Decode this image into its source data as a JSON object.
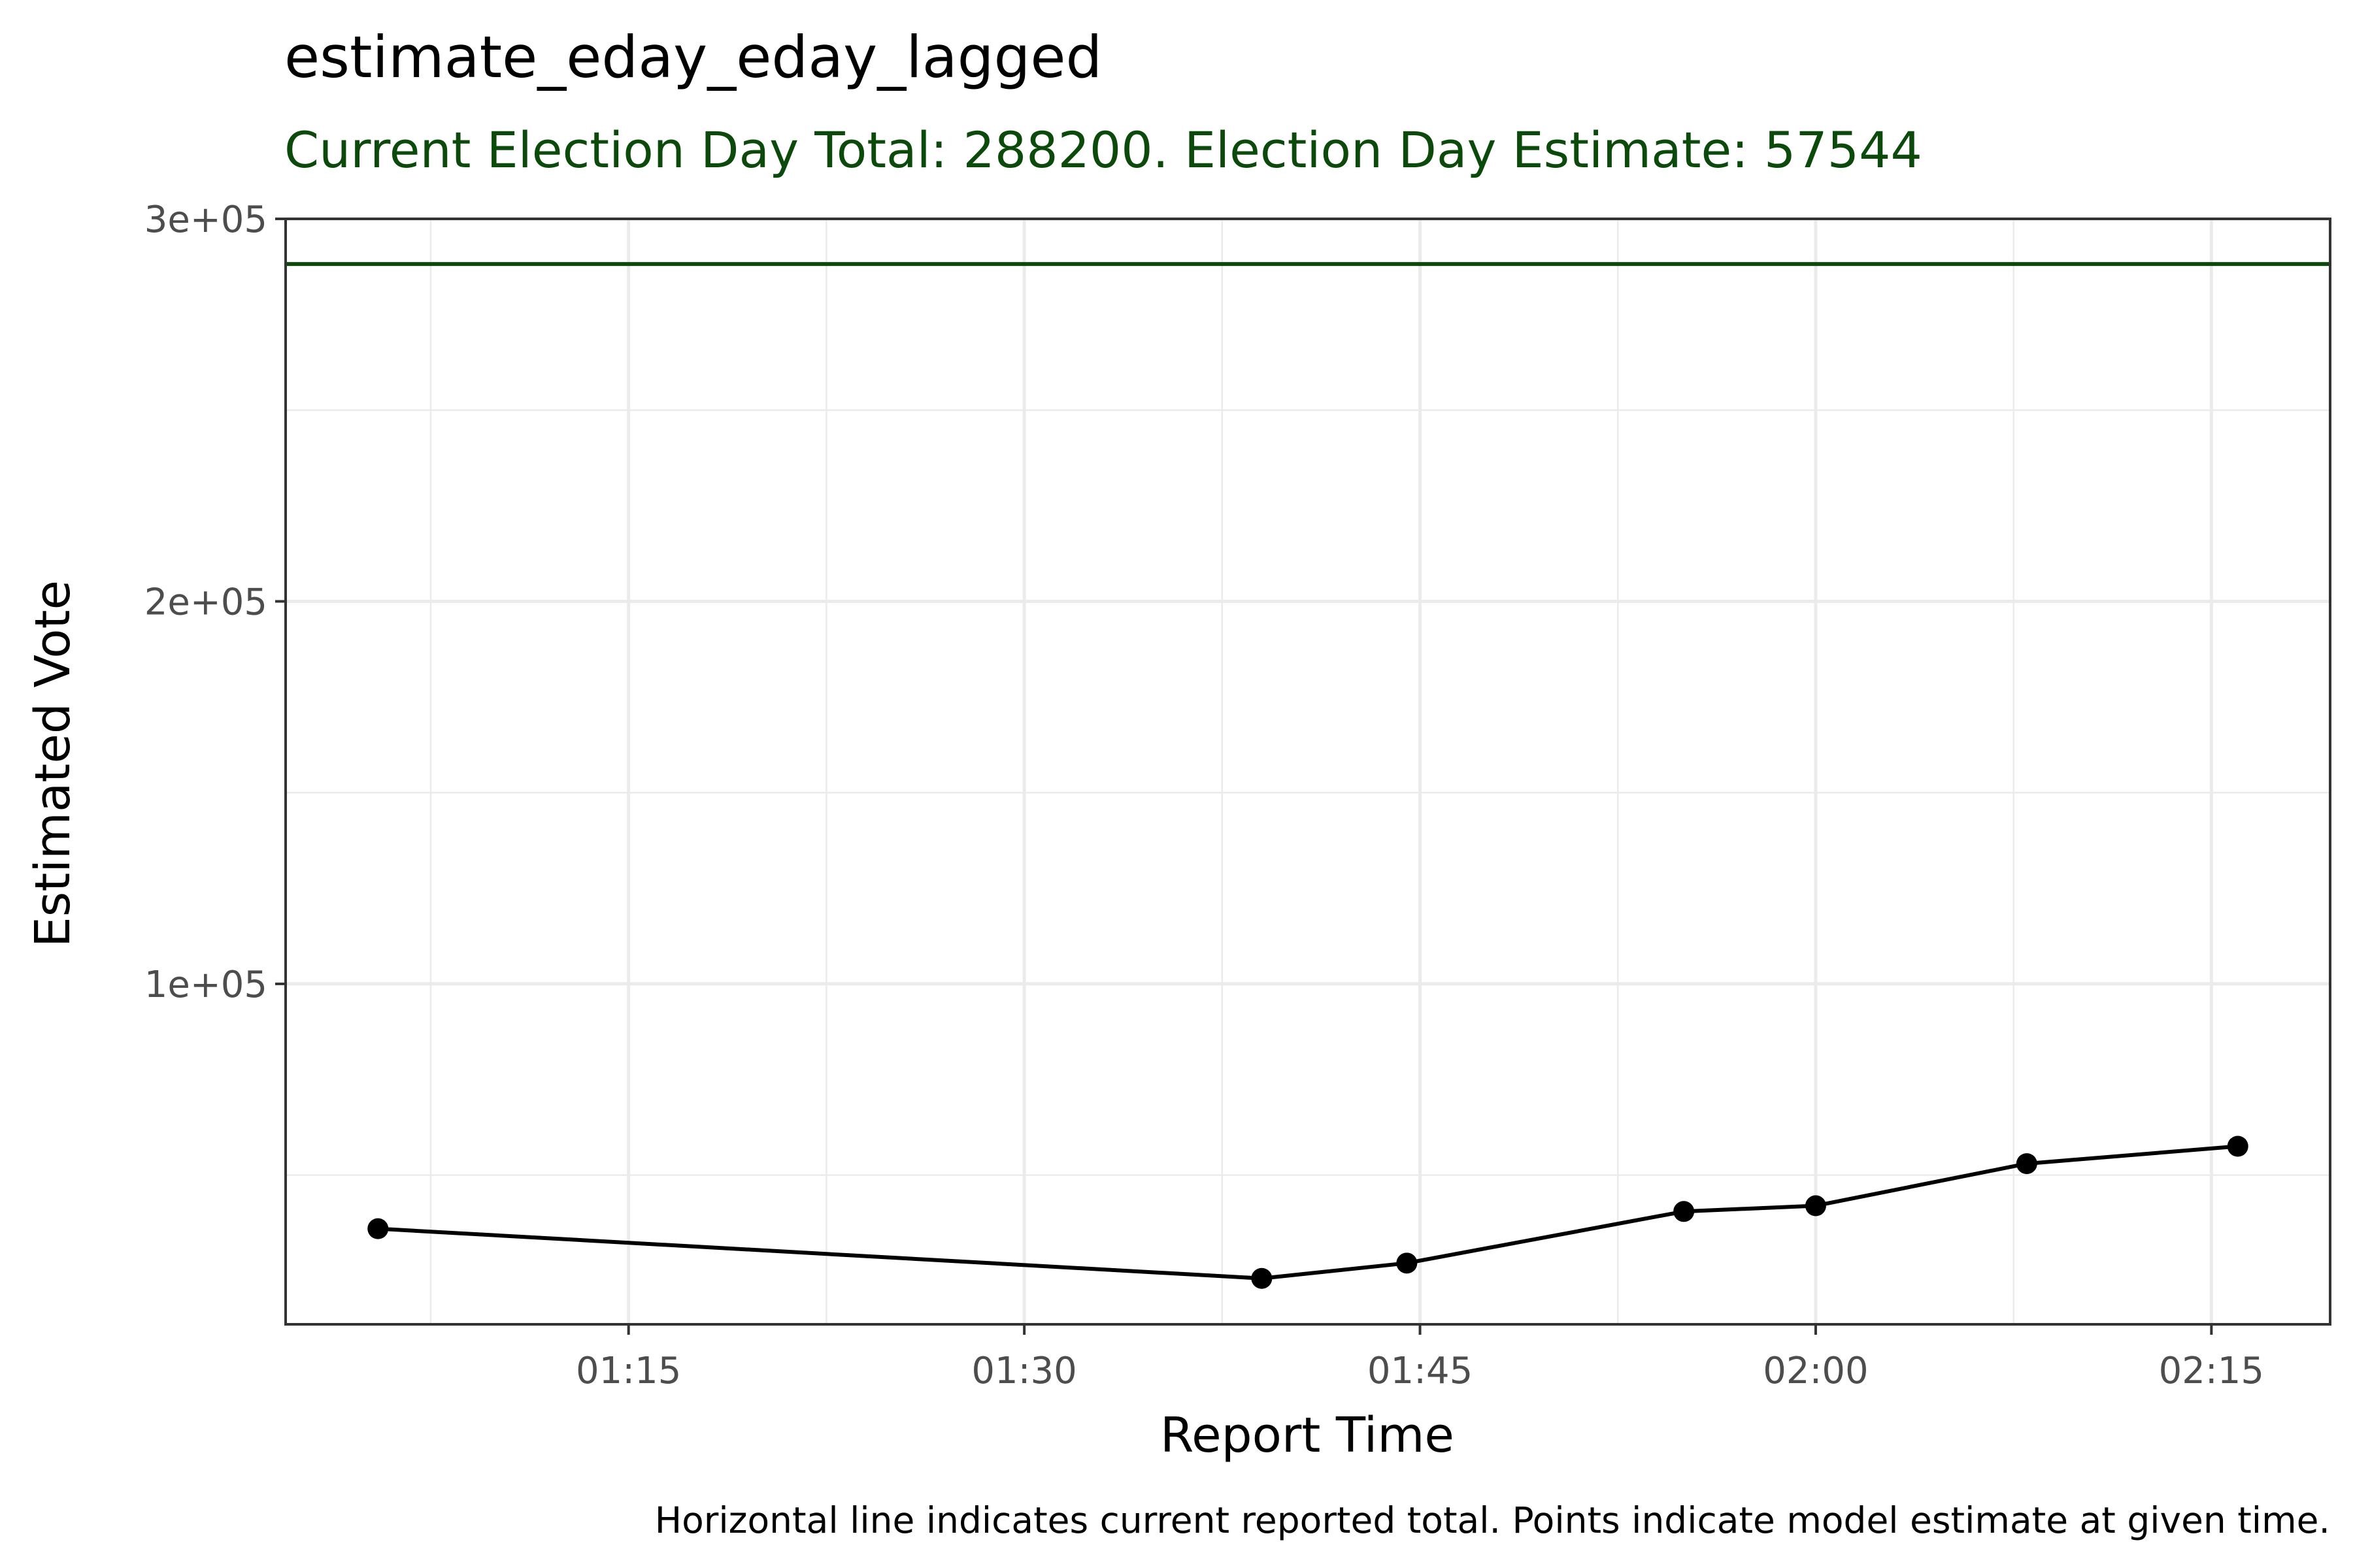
{
  "chart_data": {
    "type": "line",
    "title": "estimate_eday_eday_lagged",
    "subtitle": "Current Election Day Total: 288200. Election Day Estimate: 57544",
    "xlabel": "Report Time",
    "ylabel": "Estimated Vote",
    "caption": "Horizontal line indicates current reported total. Points indicate model estimate at given time.",
    "x_ticks": [
      "01:15",
      "01:30",
      "01:45",
      "02:00",
      "02:15"
    ],
    "x_tick_minutes": [
      75,
      90,
      105,
      120,
      135
    ],
    "xlim_minutes": [
      62.0,
      139.5
    ],
    "y_ticks": [
      100000,
      200000,
      300000
    ],
    "y_tick_labels": [
      "1e+05",
      "2e+05",
      "3e+05"
    ],
    "ylim": [
      11000,
      300000
    ],
    "grid": true,
    "hline": {
      "value": 288200,
      "color": "#0b4a0b"
    },
    "series": [
      {
        "x_minutes": [
          65.5,
          99.0,
          104.5,
          115.0,
          120.0,
          128.0,
          136.0
        ],
        "x": [
          "01:05",
          "01:39",
          "01:44",
          "01:55",
          "02:00",
          "02:08",
          "02:16"
        ],
        "values": [
          36000,
          23000,
          27000,
          40500,
          42000,
          53000,
          57544
        ]
      }
    ],
    "colors": {
      "line": "#000000",
      "subtitle": "#0b4a0b",
      "grid": "#ebebeb",
      "panel_border": "#333333"
    }
  }
}
